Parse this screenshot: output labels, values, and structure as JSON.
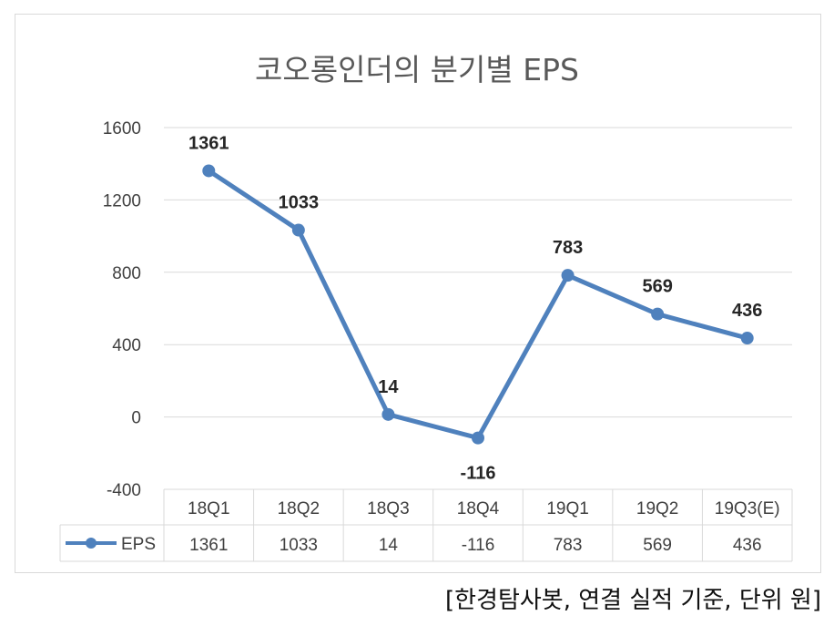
{
  "chart_data": {
    "type": "line",
    "title": "코오롱인더의 분기별 EPS",
    "categories": [
      "18Q1",
      "18Q2",
      "18Q3",
      "18Q4",
      "19Q1",
      "19Q2",
      "19Q3(E)"
    ],
    "series": [
      {
        "name": "EPS",
        "values": [
          1361,
          1033,
          14,
          -116,
          783,
          569,
          436
        ]
      }
    ],
    "data_labels": [
      "1361",
      "1033",
      "14",
      "-116",
      "783",
      "569",
      "436"
    ],
    "yticks": [
      "1600",
      "1200",
      "800",
      "400",
      "0",
      "-400"
    ],
    "ylim": [
      -400,
      1600
    ],
    "grid": true,
    "legend": "data-table",
    "data_table": true,
    "colors": {
      "series": "#4f81bd",
      "grid": "#d9d9d9",
      "text": "#404040"
    }
  },
  "source": "[한경탐사봇, 연결 실적 기준, 단위 원]"
}
